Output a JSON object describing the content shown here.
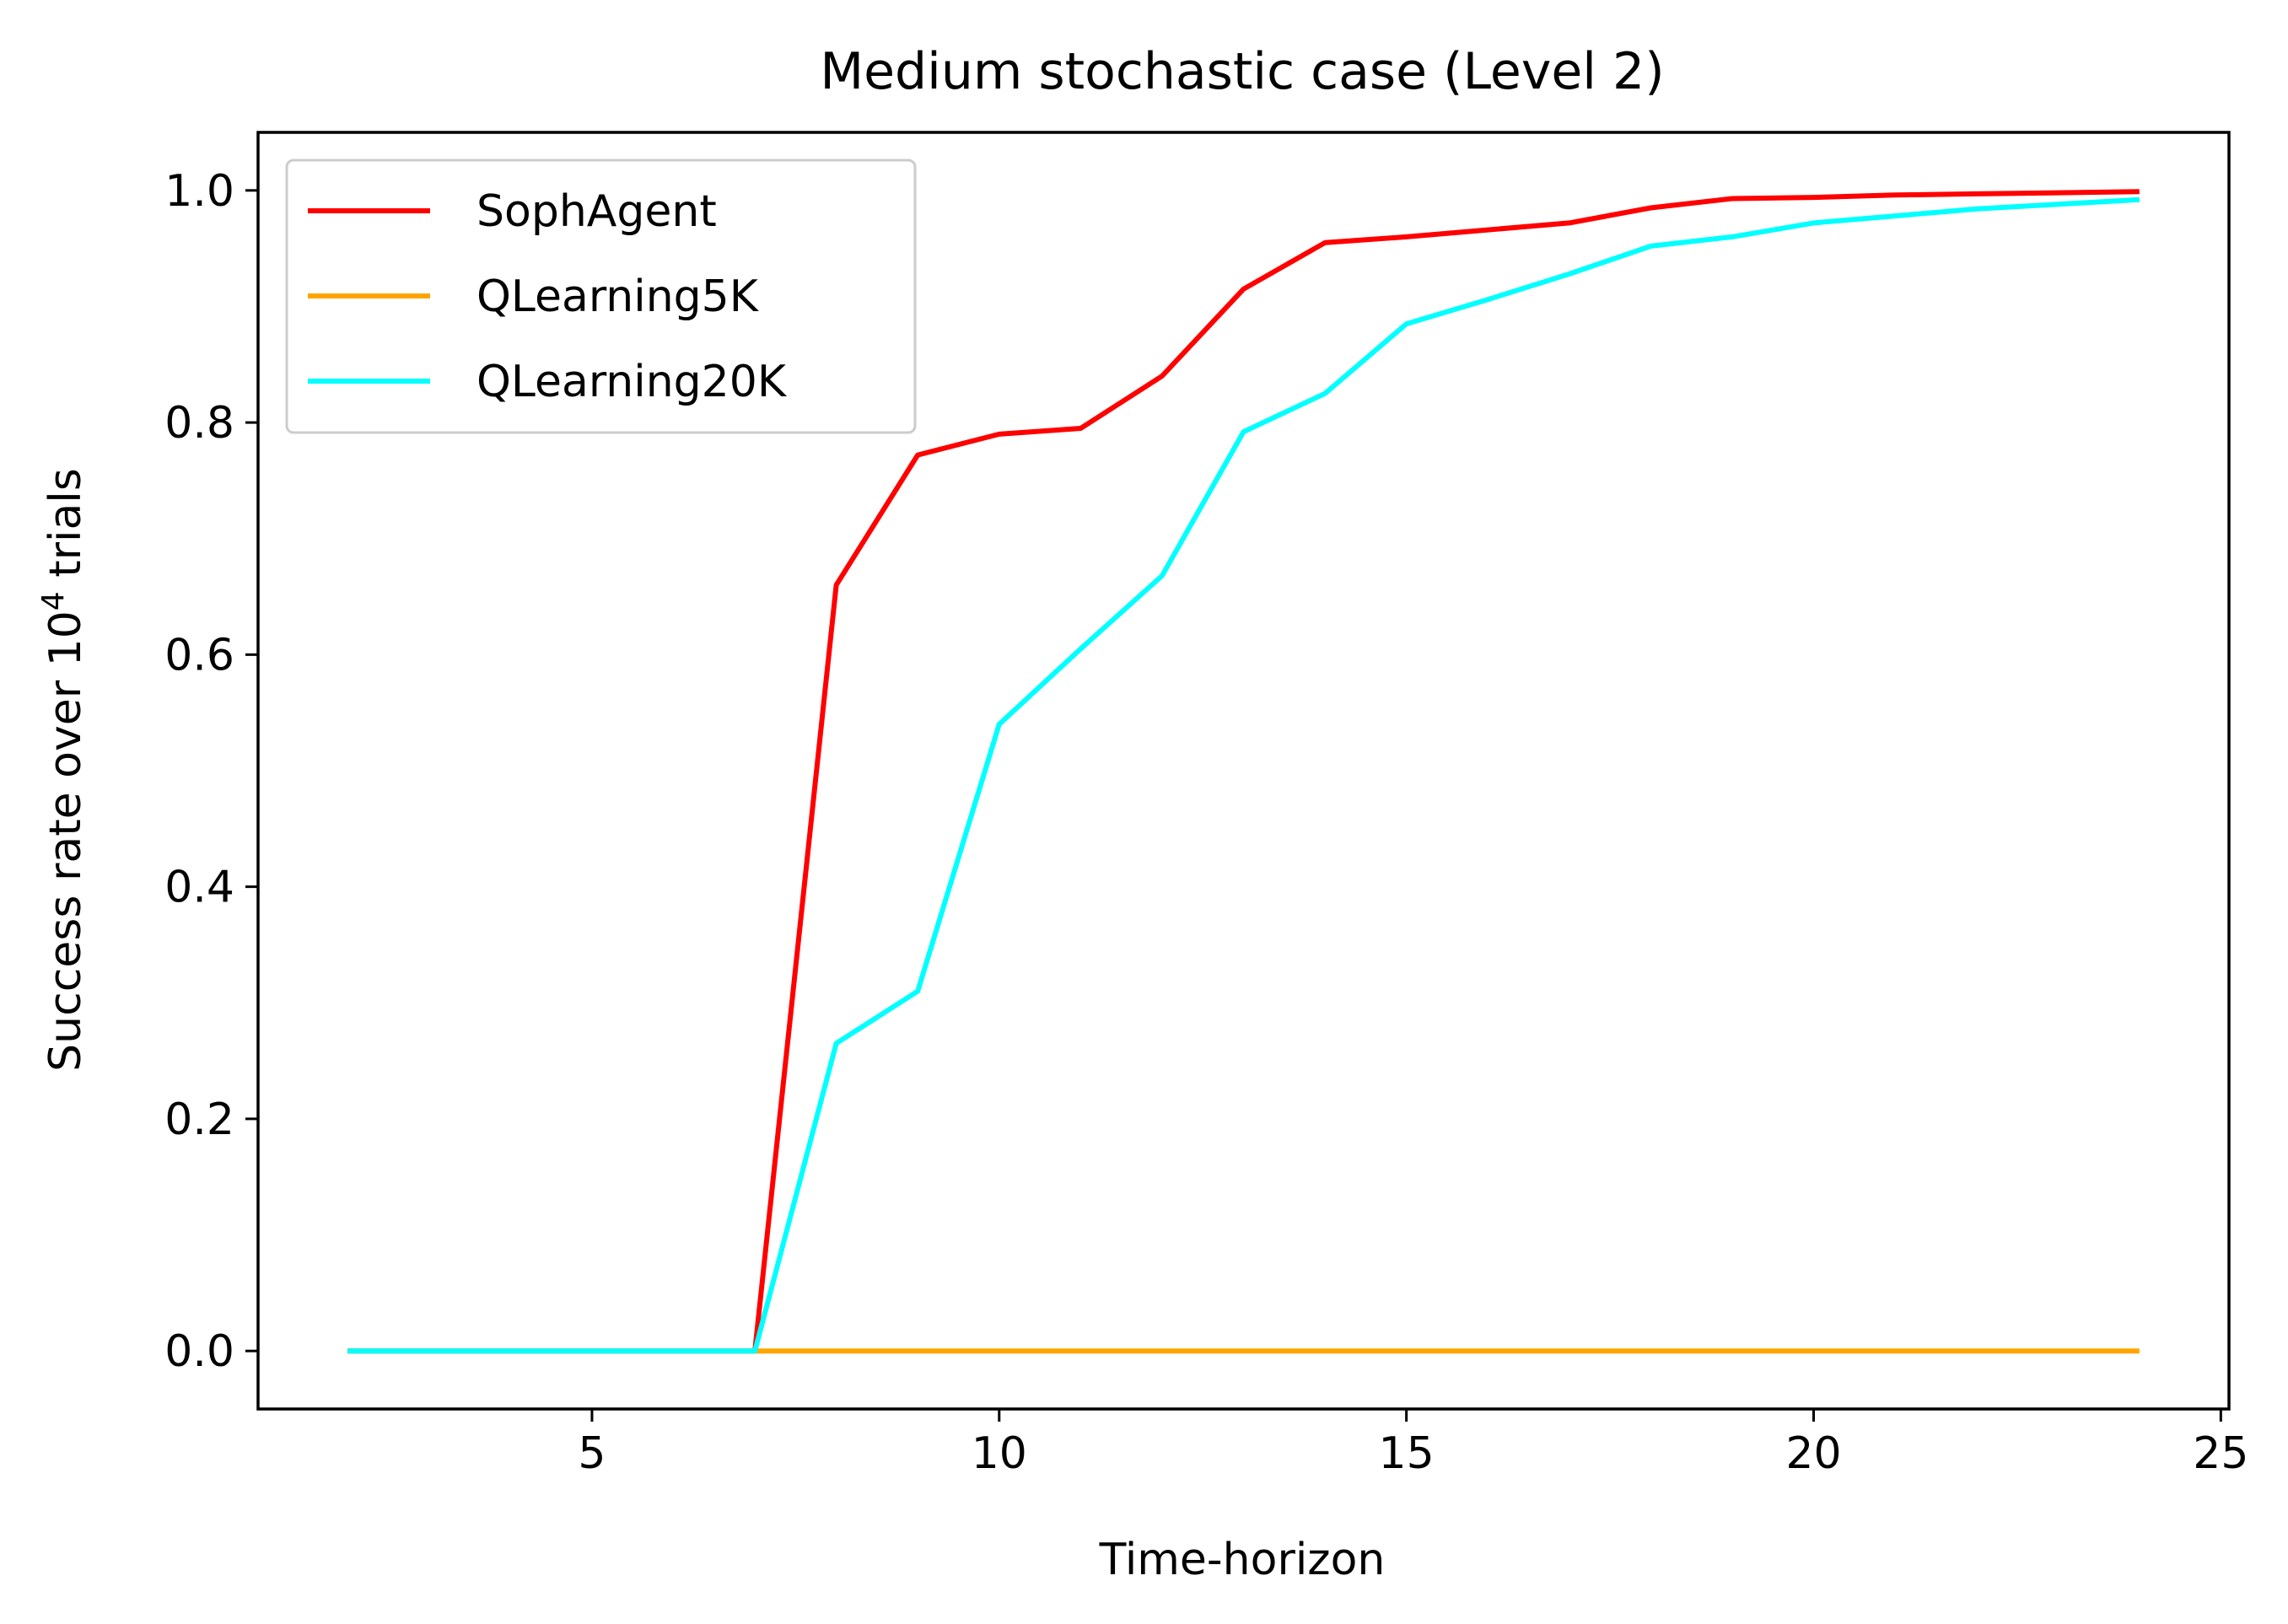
{
  "chart_data": {
    "type": "line",
    "title": "Medium stochastic case (Level 2)",
    "xlabel": "Time-horizon",
    "ylabel": {
      "prefix": "Success rate over 10",
      "superscript": "4",
      "suffix": " trials"
    },
    "xlim": [
      0.9,
      25.1
    ],
    "ylim": [
      -0.05,
      1.05
    ],
    "xticks": [
      5,
      10,
      15,
      20,
      25
    ],
    "yticks": [
      0.0,
      0.2,
      0.4,
      0.6,
      0.8,
      1.0
    ],
    "xtick_labels": [
      "5",
      "10",
      "15",
      "20",
      "25"
    ],
    "ytick_labels": [
      "0.0",
      "0.2",
      "0.4",
      "0.6",
      "0.8",
      "1.0"
    ],
    "grid": false,
    "legend_position": "upper-left",
    "x": [
      2,
      3,
      4,
      5,
      6,
      7,
      8,
      9,
      10,
      11,
      12,
      13,
      14,
      15,
      16,
      17,
      18,
      19,
      20,
      21,
      22,
      23,
      24
    ],
    "series": [
      {
        "name": "SophAgent",
        "color": "#ff0000",
        "values": [
          0,
          0,
          0,
          0,
          0,
          0,
          0.66,
          0.772,
          0.79,
          0.795,
          0.84,
          0.915,
          0.955,
          0.96,
          0.966,
          0.972,
          0.985,
          0.993,
          0.994,
          0.996,
          0.997,
          0.998,
          0.999
        ]
      },
      {
        "name": "QLearning5K",
        "color": "#ffa500",
        "values": [
          0,
          0,
          0,
          0,
          0,
          0,
          0,
          0,
          0,
          0,
          0,
          0,
          0,
          0,
          0,
          0,
          0,
          0,
          0,
          0,
          0,
          0,
          0
        ]
      },
      {
        "name": "QLearning20K",
        "color": "#00ffff",
        "values": [
          0,
          0,
          0,
          0,
          0,
          0,
          0.265,
          0.31,
          0.54,
          0.605,
          0.668,
          0.792,
          0.825,
          0.885,
          0.906,
          0.928,
          0.952,
          0.96,
          0.972,
          0.978,
          0.984,
          0.988,
          0.992
        ]
      }
    ]
  }
}
